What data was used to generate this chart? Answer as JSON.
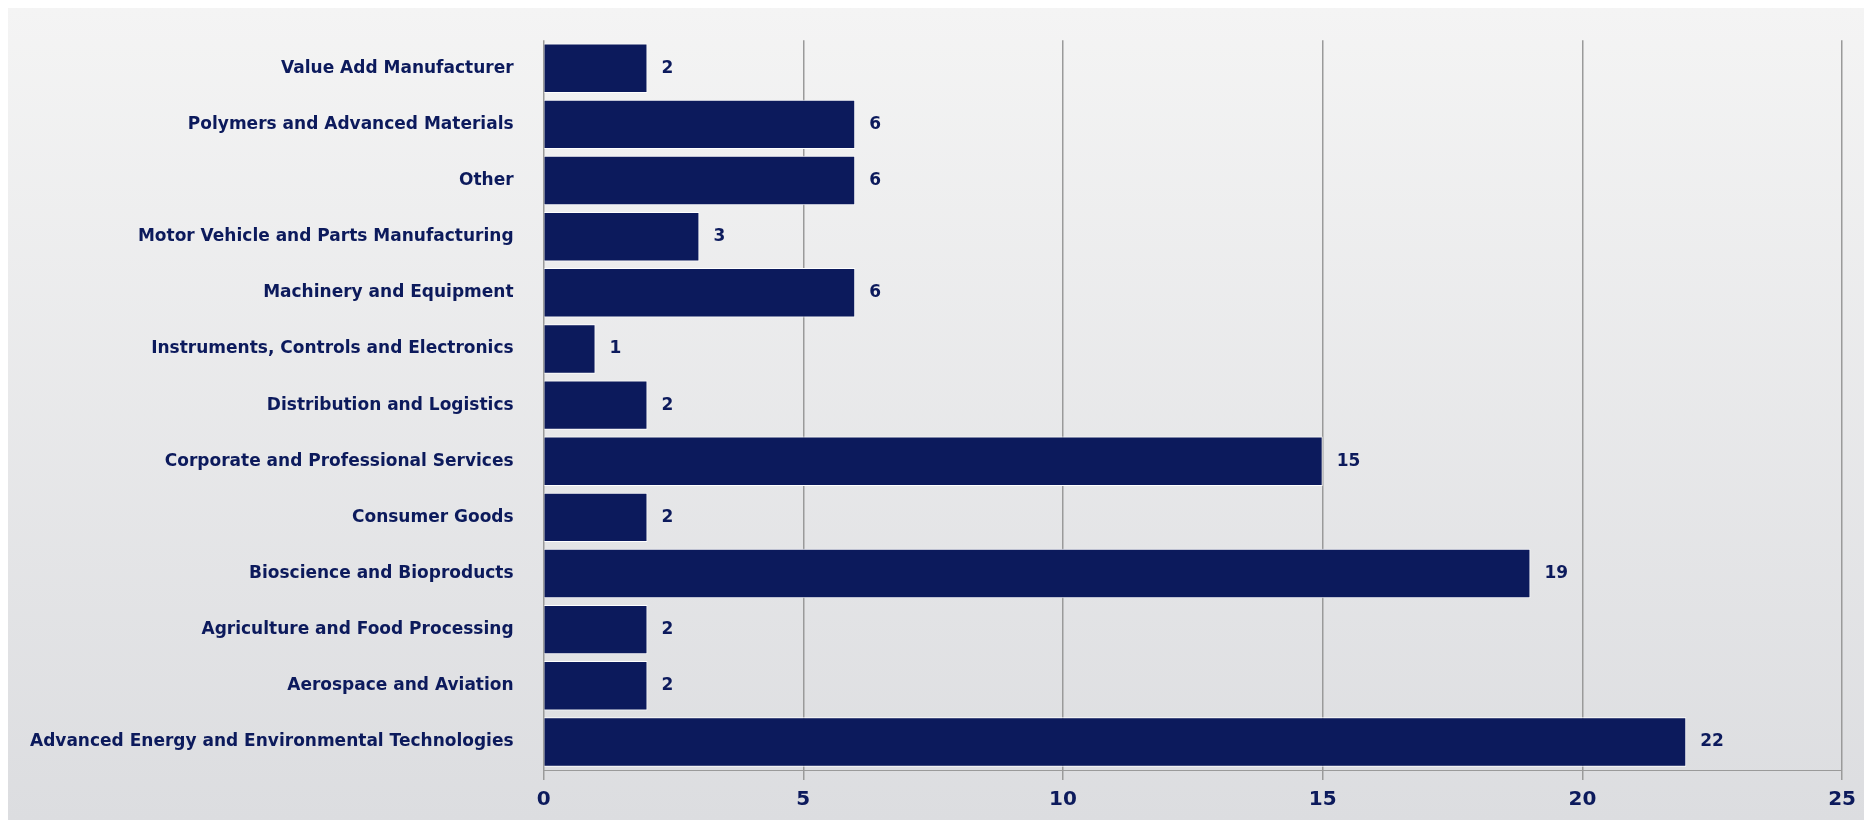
{
  "chart_data": {
    "type": "bar",
    "orientation": "horizontal",
    "categories": [
      "Value Add Manufacturer",
      "Polymers and Advanced Materials",
      "Other",
      "Motor Vehicle and Parts Manufacturing",
      "Machinery and Equipment",
      "Instruments, Controls and Electronics",
      "Distribution and Logistics",
      "Corporate and Professional Services",
      "Consumer Goods",
      "Bioscience and Bioproducts",
      "Agriculture and Food Processing",
      "Aerospace and Aviation",
      "Advanced Energy and Environmental Technologies"
    ],
    "values": [
      2,
      6,
      6,
      3,
      6,
      1,
      2,
      15,
      2,
      19,
      2,
      2,
      22
    ],
    "color": "#0c1a5c",
    "xlim": [
      0,
      25
    ],
    "xticks": [
      0,
      5,
      10,
      15,
      20,
      25
    ],
    "grid": "x",
    "data_labels": true
  }
}
